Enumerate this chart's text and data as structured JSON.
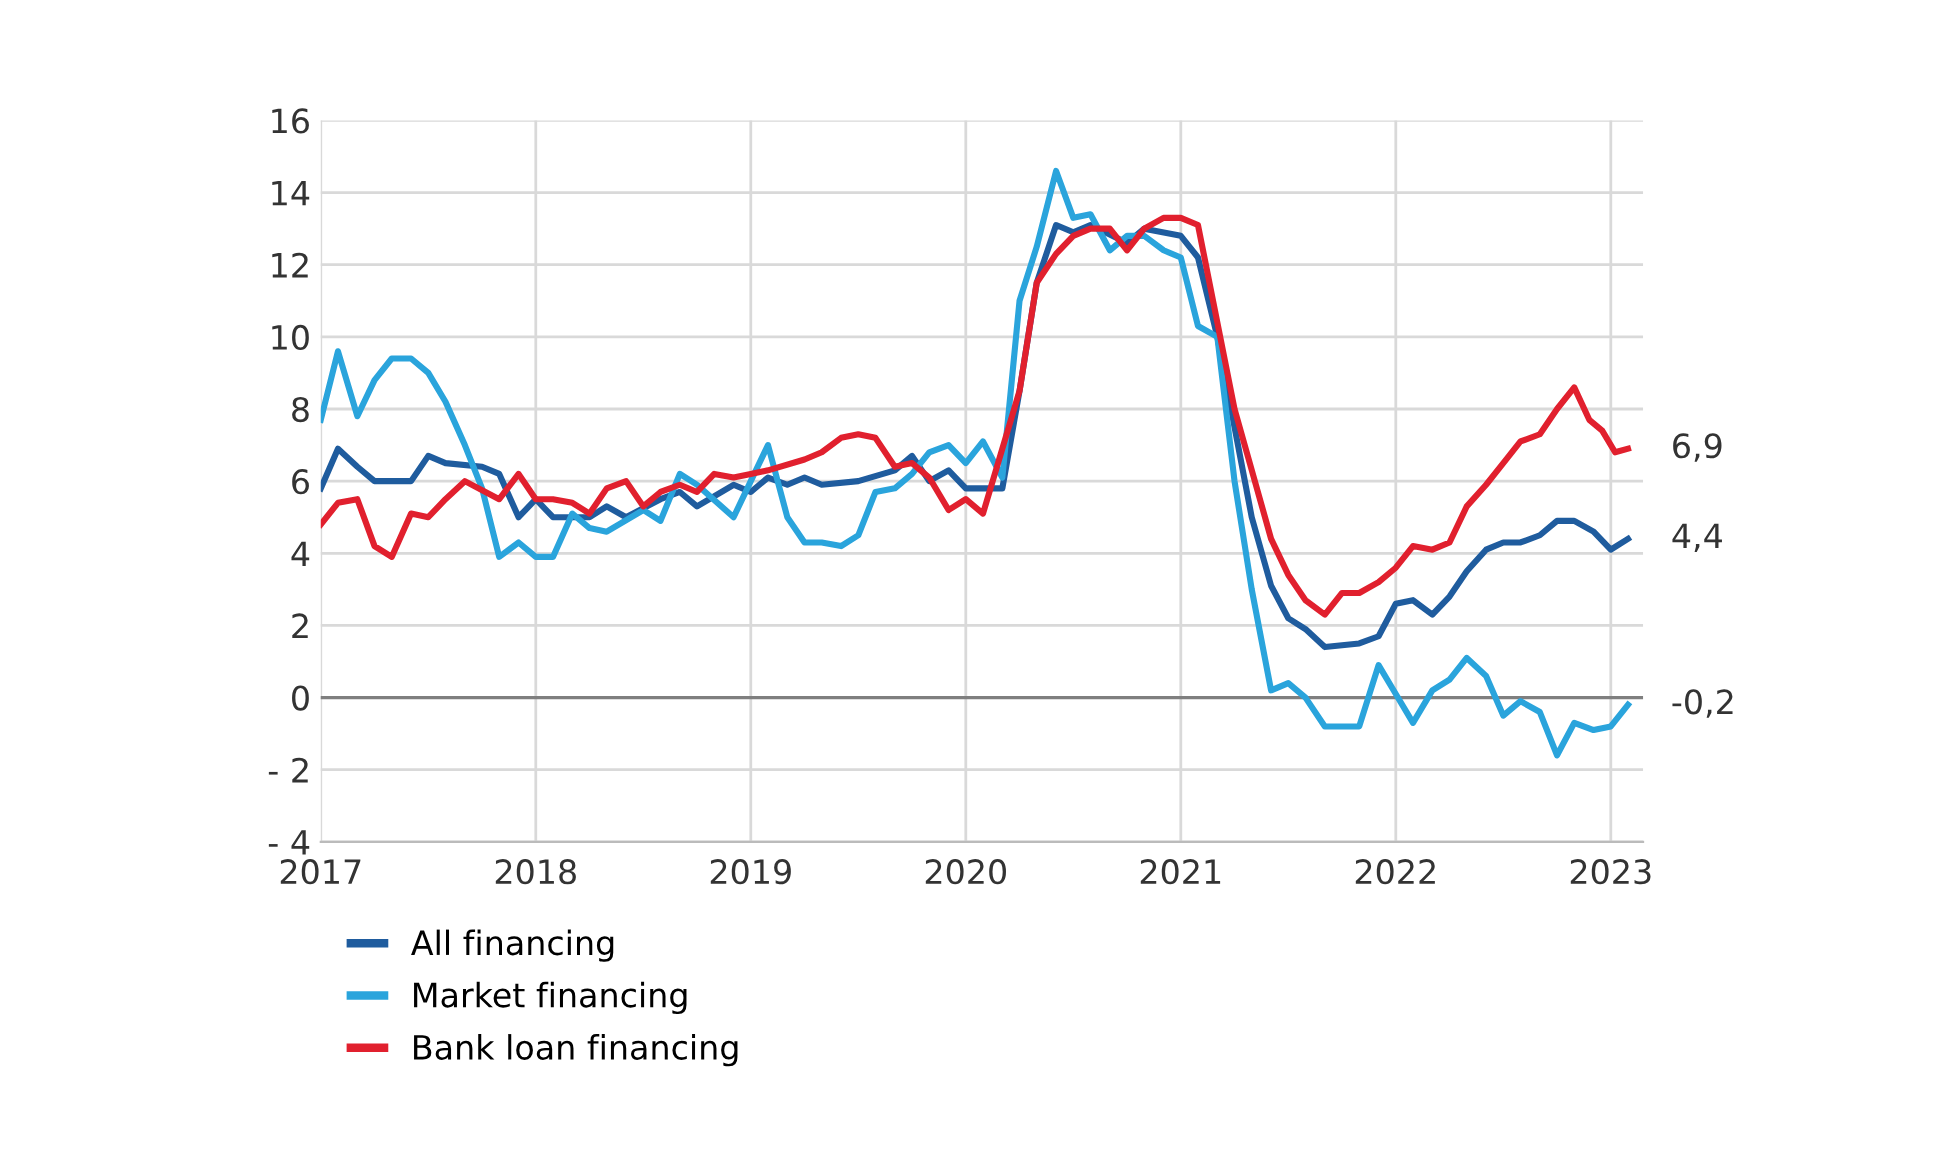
{
  "chart_data": {
    "type": "line",
    "xlim": [
      2017,
      2023.15
    ],
    "xticks": [
      2017,
      2018,
      2019,
      2020,
      2021,
      2022,
      2023
    ],
    "ylim": [
      -4,
      16
    ],
    "yticks": [
      {
        "value": -4,
        "label": "- 4"
      },
      {
        "value": -2,
        "label": "- 2"
      },
      0,
      2,
      4,
      6,
      8,
      10,
      12,
      14,
      16
    ],
    "grid": true,
    "legend": "bottom",
    "marker": "none",
    "line_style": "solid",
    "ref_lines": [
      {
        "axis": "y",
        "value": 0,
        "color": "#7f7f7f"
      }
    ],
    "annotations": [
      "4,4",
      "-0,2",
      "6,9"
    ],
    "series": [
      {
        "name": "All financing",
        "color": "#1f5c9e",
        "x": [
          2017.0,
          2017.08,
          2017.17,
          2017.25,
          2017.42,
          2017.5,
          2017.58,
          2017.75,
          2017.83,
          2017.92,
          2018.0,
          2018.08,
          2018.25,
          2018.33,
          2018.42,
          2018.58,
          2018.67,
          2018.75,
          2018.92,
          2019.0,
          2019.08,
          2019.17,
          2019.25,
          2019.33,
          2019.5,
          2019.67,
          2019.75,
          2019.83,
          2019.92,
          2020.0,
          2020.17,
          2020.25,
          2020.33,
          2020.42,
          2020.5,
          2020.58,
          2020.75,
          2020.83,
          2021.0,
          2021.08,
          2021.17,
          2021.33,
          2021.42,
          2021.5,
          2021.58,
          2021.67,
          2021.83,
          2021.92,
          2022.0,
          2022.08,
          2022.17,
          2022.25,
          2022.33,
          2022.42,
          2022.5,
          2022.58,
          2022.67,
          2022.75,
          2022.83,
          2022.92,
          2023.0,
          2023.08
        ],
        "values": [
          5.8,
          6.9,
          6.4,
          6.0,
          6.0,
          6.7,
          6.5,
          6.4,
          6.2,
          5.0,
          5.5,
          5.0,
          5.0,
          5.3,
          5.0,
          5.5,
          5.7,
          5.3,
          5.9,
          5.7,
          6.1,
          5.9,
          6.1,
          5.9,
          6.0,
          6.3,
          6.7,
          6.0,
          6.3,
          5.8,
          5.8,
          8.5,
          11.5,
          13.1,
          12.9,
          13.1,
          12.6,
          13.0,
          12.8,
          12.2,
          10.0,
          5.0,
          3.1,
          2.2,
          1.9,
          1.4,
          1.5,
          1.7,
          2.6,
          2.7,
          2.3,
          2.8,
          3.5,
          4.1,
          4.3,
          4.3,
          4.5,
          4.9,
          4.9,
          4.6,
          4.1,
          4.4
        ]
      },
      {
        "name": "Market financing",
        "color": "#2aa4dc",
        "x": [
          2017.0,
          2017.08,
          2017.17,
          2017.25,
          2017.33,
          2017.42,
          2017.5,
          2017.58,
          2017.67,
          2017.75,
          2017.83,
          2017.92,
          2018.0,
          2018.08,
          2018.17,
          2018.25,
          2018.33,
          2018.5,
          2018.58,
          2018.67,
          2018.75,
          2018.92,
          2019.0,
          2019.08,
          2019.17,
          2019.25,
          2019.33,
          2019.42,
          2019.5,
          2019.58,
          2019.67,
          2019.75,
          2019.83,
          2019.92,
          2020.0,
          2020.08,
          2020.17,
          2020.25,
          2020.33,
          2020.42,
          2020.5,
          2020.58,
          2020.67,
          2020.75,
          2020.83,
          2020.92,
          2021.0,
          2021.08,
          2021.17,
          2021.25,
          2021.33,
          2021.42,
          2021.5,
          2021.58,
          2021.67,
          2021.75,
          2021.83,
          2021.92,
          2022.0,
          2022.08,
          2022.17,
          2022.25,
          2022.33,
          2022.42,
          2022.5,
          2022.58,
          2022.67,
          2022.75,
          2022.83,
          2022.92,
          2023.0,
          2023.08
        ],
        "values": [
          7.7,
          9.6,
          7.8,
          8.8,
          9.4,
          9.4,
          9.0,
          8.2,
          7.0,
          5.8,
          3.9,
          4.3,
          3.9,
          3.9,
          5.1,
          4.7,
          4.6,
          5.2,
          4.9,
          6.2,
          5.9,
          5.0,
          6.0,
          7.0,
          5.0,
          4.3,
          4.3,
          4.2,
          4.5,
          5.7,
          5.8,
          6.2,
          6.8,
          7.0,
          6.5,
          7.1,
          6.1,
          11.0,
          12.5,
          14.6,
          13.3,
          13.4,
          12.4,
          12.8,
          12.8,
          12.4,
          12.2,
          10.3,
          10.0,
          6.0,
          3.0,
          0.2,
          0.4,
          0.0,
          -0.8,
          -0.8,
          -0.8,
          0.9,
          0.1,
          -0.7,
          0.2,
          0.5,
          1.1,
          0.6,
          -0.5,
          -0.1,
          -0.4,
          -1.6,
          -0.7,
          -0.9,
          -0.8,
          -0.2
        ]
      },
      {
        "name": "Bank loan financing",
        "color": "#e1202e",
        "x": [
          2017.0,
          2017.08,
          2017.17,
          2017.25,
          2017.33,
          2017.42,
          2017.5,
          2017.58,
          2017.67,
          2017.83,
          2017.92,
          2018.0,
          2018.08,
          2018.17,
          2018.25,
          2018.33,
          2018.42,
          2018.5,
          2018.58,
          2018.67,
          2018.75,
          2018.83,
          2018.92,
          2019.0,
          2019.08,
          2019.25,
          2019.33,
          2019.42,
          2019.5,
          2019.58,
          2019.67,
          2019.75,
          2019.83,
          2019.92,
          2020.0,
          2020.08,
          2020.25,
          2020.33,
          2020.42,
          2020.5,
          2020.58,
          2020.67,
          2020.75,
          2020.83,
          2020.92,
          2021.0,
          2021.08,
          2021.25,
          2021.42,
          2021.5,
          2021.58,
          2021.67,
          2021.75,
          2021.83,
          2021.92,
          2022.0,
          2022.08,
          2022.17,
          2022.25,
          2022.33,
          2022.42,
          2022.5,
          2022.58,
          2022.67,
          2022.75,
          2022.83,
          2022.9,
          2022.96,
          2023.02,
          2023.08
        ],
        "values": [
          4.8,
          5.4,
          5.5,
          4.2,
          3.9,
          5.1,
          5.0,
          5.5,
          6.0,
          5.5,
          6.2,
          5.5,
          5.5,
          5.4,
          5.1,
          5.8,
          6.0,
          5.3,
          5.7,
          5.9,
          5.7,
          6.2,
          6.1,
          6.2,
          6.3,
          6.6,
          6.8,
          7.2,
          7.3,
          7.2,
          6.4,
          6.5,
          6.1,
          5.2,
          5.5,
          5.1,
          8.5,
          11.5,
          12.3,
          12.8,
          13.0,
          13.0,
          12.4,
          13.0,
          13.3,
          13.3,
          13.1,
          8.0,
          4.4,
          3.4,
          2.7,
          2.3,
          2.9,
          2.9,
          3.2,
          3.6,
          4.2,
          4.1,
          4.3,
          5.3,
          5.9,
          6.5,
          7.1,
          7.3,
          8.0,
          8.6,
          7.7,
          7.4,
          6.8,
          6.9
        ]
      }
    ]
  }
}
